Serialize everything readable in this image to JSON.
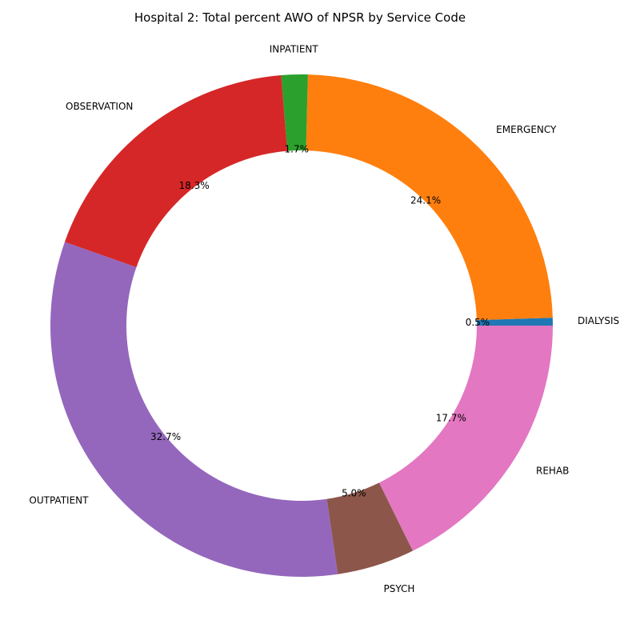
{
  "chart_data": {
    "type": "pie",
    "title": "Hospital 2: Total percent AWO of NPSR by Service Code",
    "donut": true,
    "slices": [
      {
        "label": "DIALYSIS",
        "value": 0.5,
        "pct_label": "0.5%",
        "color": "#1f77b4"
      },
      {
        "label": "EMERGENCY",
        "value": 24.1,
        "pct_label": "24.1%",
        "color": "#ff7f0e"
      },
      {
        "label": "INPATIENT",
        "value": 1.7,
        "pct_label": "1.7%",
        "color": "#2ca02c"
      },
      {
        "label": "OBSERVATION",
        "value": 18.3,
        "pct_label": "18.3%",
        "color": "#d62728"
      },
      {
        "label": "OUTPATIENT",
        "value": 32.7,
        "pct_label": "32.7%",
        "color": "#9467bd"
      },
      {
        "label": "PSYCH",
        "value": 5.0,
        "pct_label": "5.0%",
        "color": "#8c564b"
      },
      {
        "label": "REHAB",
        "value": 17.7,
        "pct_label": "17.7%",
        "color": "#e377c2"
      }
    ]
  }
}
